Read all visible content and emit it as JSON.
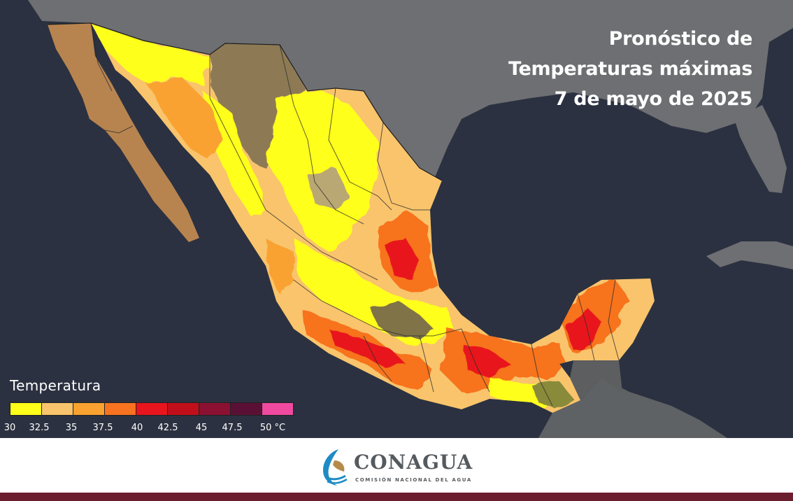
{
  "map": {
    "title_lines": [
      "Pronóstico de",
      "Temperaturas máximas",
      "7 de mayo de 2025"
    ],
    "subject": "Forecast of maximum temperatures over Mexico",
    "colors": {
      "ocean": "#2b3140",
      "land_outside": "#6b6d70",
      "land_bare": "#8a7656",
      "state_border": "#2a2a2a"
    }
  },
  "legend": {
    "title": "Temperatura",
    "swatches": [
      "#ffff1a",
      "#f9c46c",
      "#f9a230",
      "#f7731f",
      "#e8141e",
      "#c00f1a",
      "#8b1032",
      "#5a1034",
      "#ef4aa0"
    ],
    "ticks": [
      "30",
      "32.5",
      "35",
      "37.5",
      "40",
      "42.5",
      "45",
      "47.5",
      "50 °C"
    ]
  },
  "footer": {
    "logo_name": "CONAGUA",
    "logo_subtitle": "COMISIÓN NACIONAL DEL AGUA",
    "logo_icon": "conagua-wave-icon",
    "bar_color": "#6b1e2e"
  }
}
